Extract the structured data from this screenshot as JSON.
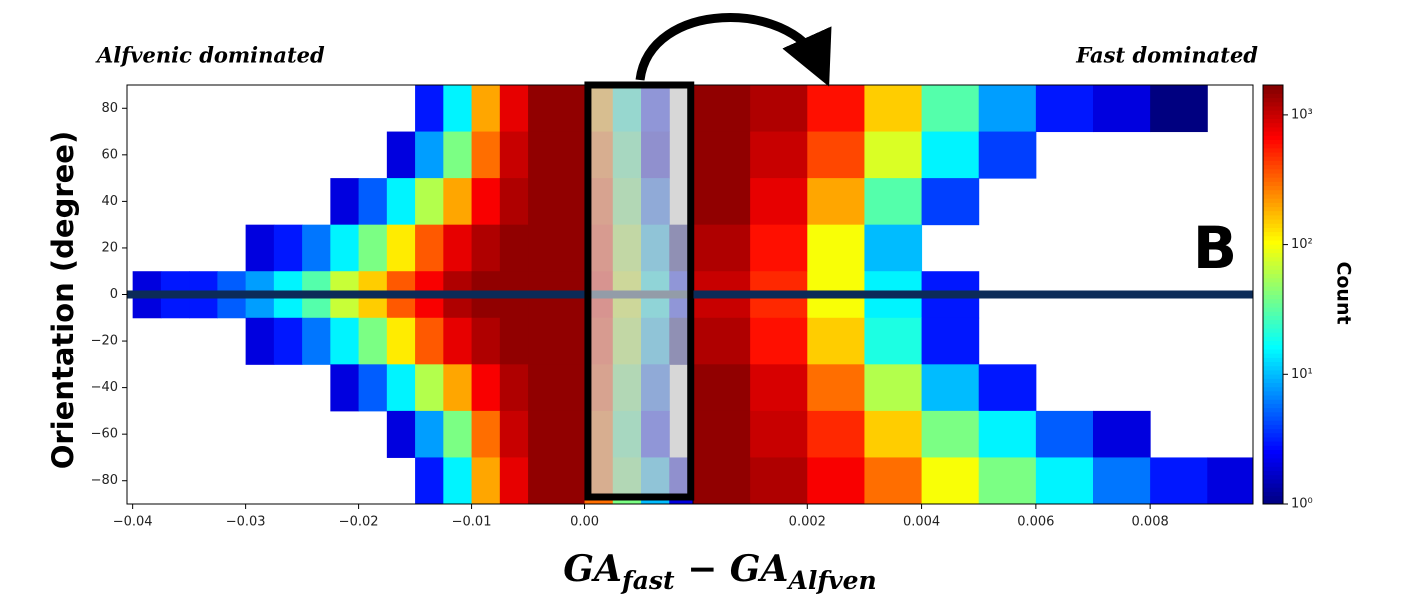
{
  "chart_data": [
    {
      "type": "heatmap",
      "xlim": [
        -0.0405,
        0.0096
      ],
      "ylim": [
        -90,
        90
      ],
      "xticks": [
        {
          "value": -0.04,
          "label": "−0.04"
        },
        {
          "value": -0.03,
          "label": "−0.03"
        },
        {
          "value": -0.02,
          "label": "−0.02"
        },
        {
          "value": -0.01,
          "label": "−0.01"
        },
        {
          "value": 0,
          "label": "0.00"
        }
      ],
      "yticks": [
        {
          "value": -80,
          "label": "−80"
        },
        {
          "value": -60,
          "label": "−60"
        },
        {
          "value": -40,
          "label": "−40"
        },
        {
          "value": -20,
          "label": "−20"
        },
        0,
        20,
        40,
        60,
        80
      ],
      "ylabel": "Orientation  (degree)",
      "xbins": [
        -0.04,
        -0.0375,
        -0.035,
        -0.0325,
        -0.03,
        -0.0275,
        -0.025,
        -0.0225,
        -0.02,
        -0.0175,
        -0.015,
        -0.0125,
        -0.01,
        -0.0075,
        -0.005,
        -0.0025,
        0,
        0.0025,
        0.005,
        0.0075,
        0.01
      ],
      "ybins": [
        90,
        70,
        50,
        30,
        10,
        -10,
        -30,
        -50,
        -70,
        -90
      ],
      "z": [
        [
          0,
          0,
          0,
          0,
          0,
          0,
          0,
          0,
          0,
          0,
          3,
          15,
          200,
          800,
          1500,
          1500,
          200,
          20,
          3,
          0
        ],
        [
          0,
          0,
          0,
          0,
          0,
          0,
          0,
          0,
          0,
          2,
          8,
          40,
          300,
          1000,
          1500,
          1500,
          300,
          30,
          2,
          0
        ],
        [
          0,
          0,
          0,
          0,
          0,
          0,
          0,
          2,
          5,
          15,
          60,
          200,
          700,
          1200,
          1500,
          1500,
          400,
          40,
          5,
          0
        ],
        [
          0,
          0,
          0,
          0,
          2,
          3,
          6,
          15,
          40,
          120,
          350,
          800,
          1200,
          1500,
          1500,
          1500,
          500,
          60,
          10,
          1
        ],
        [
          2,
          3,
          3,
          5,
          8,
          15,
          30,
          70,
          150,
          350,
          700,
          1200,
          1500,
          1500,
          1500,
          1500,
          600,
          80,
          15,
          3
        ],
        [
          0,
          0,
          0,
          0,
          2,
          3,
          6,
          15,
          40,
          120,
          350,
          800,
          1200,
          1500,
          1500,
          1500,
          500,
          60,
          10,
          1
        ],
        [
          0,
          0,
          0,
          0,
          0,
          0,
          0,
          2,
          5,
          15,
          60,
          200,
          700,
          1200,
          1500,
          1500,
          400,
          40,
          5,
          0
        ],
        [
          0,
          0,
          0,
          0,
          0,
          0,
          0,
          0,
          0,
          2,
          8,
          40,
          300,
          1000,
          1500,
          1500,
          300,
          30,
          3,
          0
        ],
        [
          0,
          0,
          0,
          0,
          0,
          0,
          0,
          0,
          0,
          0,
          3,
          15,
          200,
          800,
          1500,
          1500,
          300,
          40,
          10,
          2
        ]
      ],
      "hline": {
        "value": 0,
        "color": "#0c2b58"
      },
      "highlight": {
        "x": [
          0.0003,
          0.0094
        ]
      },
      "annotation": "Alfvenic dominated"
    },
    {
      "type": "heatmap",
      "xlim": [
        0,
        0.0098
      ],
      "ylim": [
        -90,
        90
      ],
      "xticks": [
        0.002,
        0.004,
        0.006,
        0.008
      ],
      "xbins": [
        0,
        0.001,
        0.002,
        0.003,
        0.004,
        0.005,
        0.006,
        0.007,
        0.008,
        0.009,
        0.01
      ],
      "ybins": [
        90,
        70,
        50,
        30,
        10,
        -10,
        -30,
        -50,
        -70,
        -90
      ],
      "z": [
        [
          1500,
          1200,
          600,
          150,
          30,
          8,
          3,
          2,
          1,
          0
        ],
        [
          1500,
          1000,
          400,
          80,
          15,
          4,
          0,
          0,
          0,
          0
        ],
        [
          1500,
          800,
          200,
          30,
          4,
          0,
          0,
          0,
          0,
          0
        ],
        [
          1200,
          600,
          100,
          10,
          0,
          0,
          0,
          0,
          0,
          0
        ],
        [
          1000,
          500,
          100,
          15,
          3,
          0,
          0,
          0,
          0,
          0
        ],
        [
          1200,
          600,
          150,
          20,
          3,
          0,
          0,
          0,
          0,
          0
        ],
        [
          1500,
          900,
          300,
          60,
          10,
          3,
          0,
          0,
          0,
          0
        ],
        [
          1500,
          1000,
          500,
          150,
          40,
          15,
          5,
          2,
          0,
          0
        ],
        [
          1500,
          1200,
          700,
          300,
          100,
          40,
          15,
          6,
          3,
          2
        ]
      ],
      "hline": {
        "value": 0,
        "color": "#0c2b58"
      },
      "annotation": "Fast dominated",
      "panel_label": "B"
    }
  ],
  "colorbar": {
    "label": "Count",
    "clim": [
      1,
      1700
    ],
    "log": true,
    "colormap": "jet",
    "ticks": [
      {
        "value": 1,
        "label": "10⁰"
      },
      {
        "value": 10,
        "label": "10¹"
      },
      {
        "value": 100,
        "label": "10²"
      },
      {
        "value": 1000,
        "label": "10³"
      }
    ]
  },
  "xlabel": [
    {
      "text": "GA",
      "sub": false
    },
    {
      "text": "fast",
      "sub": true
    },
    {
      "text": " − GA",
      "sub": false
    },
    {
      "text": "Alfven",
      "sub": true
    }
  ]
}
